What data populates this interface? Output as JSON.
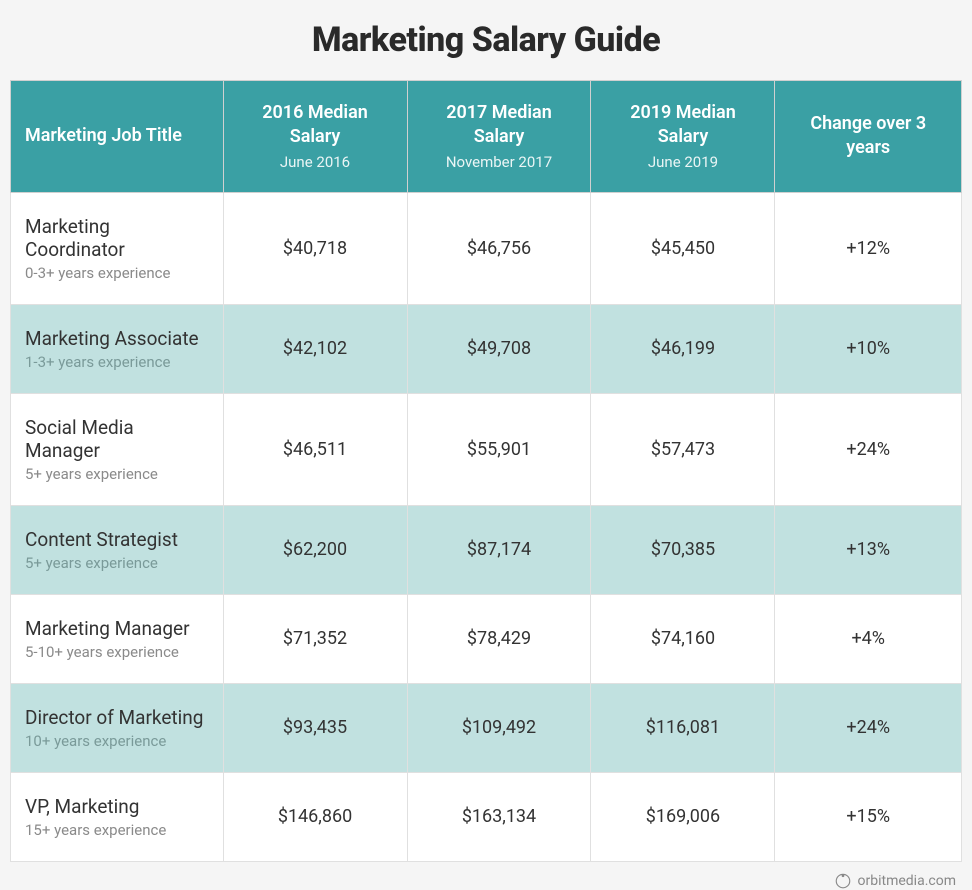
{
  "title": "Marketing Salary Guide",
  "footer": {
    "text": "orbitmedia.com"
  },
  "table": {
    "type": "table",
    "header_bg": "#3aa0a4",
    "header_fg": "#ffffff",
    "row_alt_bg": "#c1e1e0",
    "row_bg": "#ffffff",
    "border_color": "#e0e0e0",
    "columns": [
      {
        "label": "Marketing Job Title",
        "sub": ""
      },
      {
        "label": "2016 Median Salary",
        "sub": "June 2016"
      },
      {
        "label": "2017 Median Salary",
        "sub": "November 2017"
      },
      {
        "label": "2019 Median Salary",
        "sub": "June 2019"
      },
      {
        "label": "Change over 3 years",
        "sub": ""
      }
    ],
    "rows": [
      {
        "title": "Marketing Coordinator",
        "exp": "0-3+ years experience",
        "c2016": "$40,718",
        "c2017": "$46,756",
        "c2019": "$45,450",
        "change": "+12%"
      },
      {
        "title": "Marketing Associate",
        "exp": "1-3+ years experience",
        "c2016": "$42,102",
        "c2017": "$49,708",
        "c2019": "$46,199",
        "change": "+10%"
      },
      {
        "title": "Social Media Manager",
        "exp": "5+ years experience",
        "c2016": "$46,511",
        "c2017": "$55,901",
        "c2019": "$57,473",
        "change": "+24%"
      },
      {
        "title": "Content Strategist",
        "exp": "5+ years experience",
        "c2016": "$62,200",
        "c2017": "$87,174",
        "c2019": "$70,385",
        "change": "+13%"
      },
      {
        "title": "Marketing Manager",
        "exp": "5-10+ years experience",
        "c2016": "$71,352",
        "c2017": "$78,429",
        "c2019": "$74,160",
        "change": "+4%"
      },
      {
        "title": "Director of Marketing",
        "exp": "10+ years experience",
        "c2016": "$93,435",
        "c2017": "$109,492",
        "c2019": "$116,081",
        "change": "+24%"
      },
      {
        "title": "VP, Marketing",
        "exp": "15+ years experience",
        "c2016": "$146,860",
        "c2017": "$163,134",
        "c2019": "$169,006",
        "change": "+15%"
      }
    ]
  }
}
